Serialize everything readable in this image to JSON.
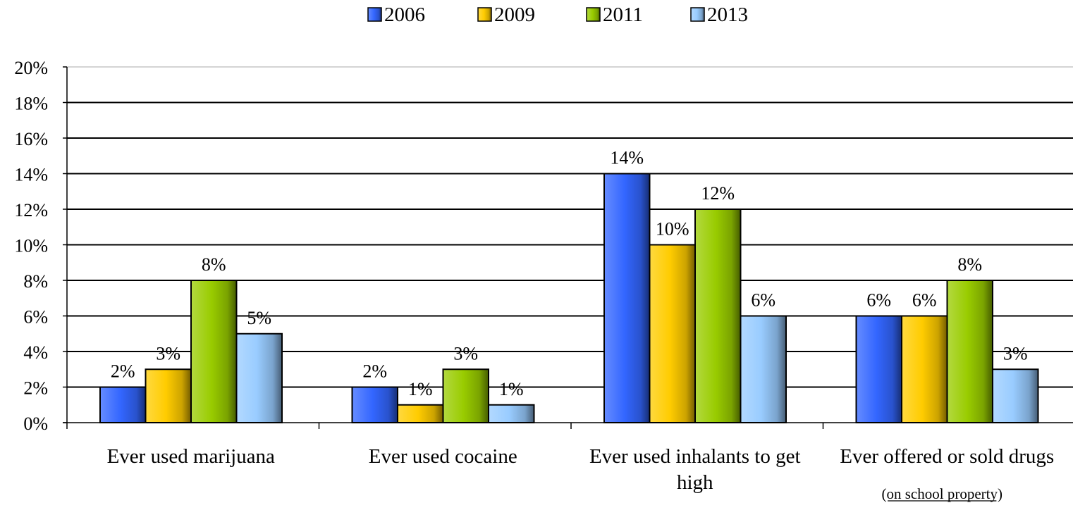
{
  "chart_data": {
    "type": "bar",
    "title": "",
    "xlabel": "",
    "ylabel": "",
    "categories": [
      "Ever used marijuana",
      "Ever used cocaine",
      "Ever used inhalants to get high",
      "Ever offered or sold drugs"
    ],
    "category_lines": [
      [
        "Ever used marijuana"
      ],
      [
        "Ever used cocaine"
      ],
      [
        "Ever used inhalants to get",
        "high"
      ],
      [
        "Ever offered or sold drugs"
      ]
    ],
    "category_notes": [
      null,
      null,
      null,
      "(on school property)"
    ],
    "series": [
      {
        "name": "2006",
        "values": [
          2,
          2,
          14,
          6
        ],
        "labels": [
          "2%",
          "2%",
          "14%",
          "6%"
        ],
        "color": "#3366ff"
      },
      {
        "name": "2009",
        "values": [
          3,
          1,
          10,
          6
        ],
        "labels": [
          "3%",
          "1%",
          "10%",
          "6%"
        ],
        "color": "#ffcc00"
      },
      {
        "name": "2011",
        "values": [
          8,
          3,
          12,
          8
        ],
        "labels": [
          "8%",
          "3%",
          "12%",
          "8%"
        ],
        "color": "#99cc00"
      },
      {
        "name": "2013",
        "values": [
          5,
          1,
          6,
          3
        ],
        "labels": [
          "5%",
          "1%",
          "6%",
          "3%"
        ],
        "color": "#99ccff"
      }
    ],
    "ylim": [
      0,
      20
    ],
    "yticks": [
      0,
      2,
      4,
      6,
      8,
      10,
      12,
      14,
      16,
      18,
      20
    ],
    "ytick_labels": [
      "0%",
      "2%",
      "4%",
      "6%",
      "8%",
      "10%",
      "12%",
      "14%",
      "16%",
      "18%",
      "20%"
    ],
    "grid": true,
    "legend_position": "top"
  }
}
